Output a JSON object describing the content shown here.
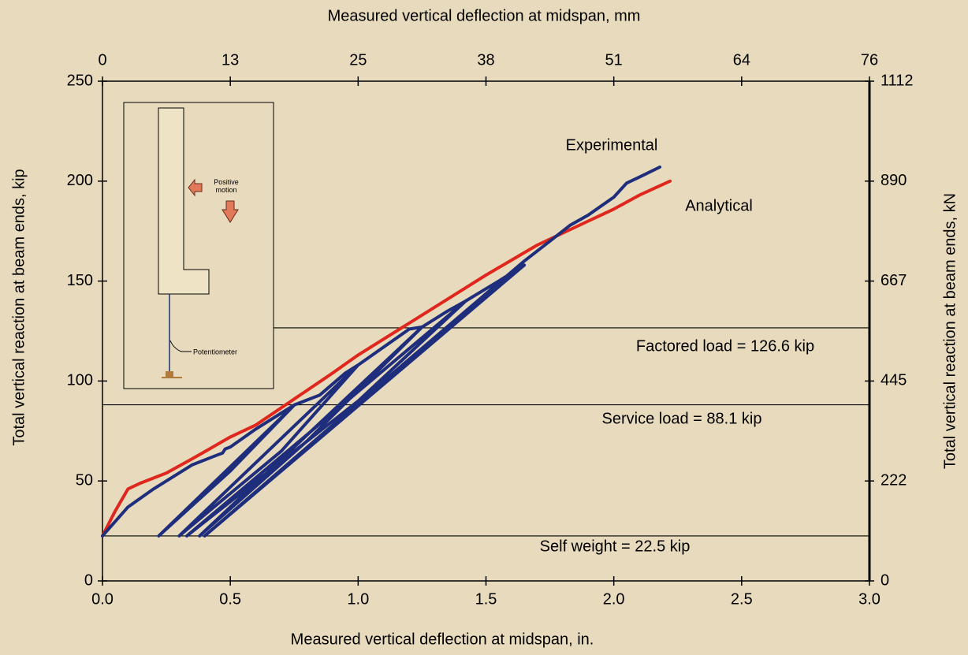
{
  "chart_data": {
    "type": "line",
    "x_label": "Measured vertical deflection at midspan, in.",
    "x2_label": "Measured vertical deflection at midspan, mm",
    "y_label": "Total vertical reaction at beam ends, kip",
    "y2_label": "Total vertical reaction at beam ends, kN",
    "xlim": [
      0,
      3
    ],
    "xticks": [
      {
        "value": 0,
        "label": "0.0"
      },
      0.5,
      {
        "value": 1,
        "label": "1.0"
      },
      1.5,
      {
        "value": 2,
        "label": "2.0"
      },
      2.5,
      {
        "value": 3,
        "label": "3.0"
      }
    ],
    "x2lim": [
      0,
      76.2
    ],
    "x2ticks": [
      0,
      {
        "value": 12.7,
        "label": "13"
      },
      {
        "value": 25.4,
        "label": "25"
      },
      {
        "value": 38.1,
        "label": "38"
      },
      {
        "value": 50.8,
        "label": "51"
      },
      {
        "value": 63.5,
        "label": "64"
      },
      {
        "value": 76.2,
        "label": "76"
      }
    ],
    "ylim": [
      0,
      250
    ],
    "yticks": [
      0,
      50,
      100,
      150,
      200,
      250
    ],
    "y2lim": [
      0,
      1112
    ],
    "y2ticks": [
      0,
      {
        "value": 222.4,
        "label": "222"
      },
      {
        "value": 444.8,
        "label": "445"
      },
      {
        "value": 667.2,
        "label": "667"
      },
      {
        "value": 889.6,
        "label": "890"
      },
      1112
    ],
    "series": [
      {
        "name": "Experimental",
        "color": "#1f2e7c",
        "x": [
          0,
          0.1,
          0.2,
          0.35,
          0.45,
          0.47,
          0.48,
          0.5,
          0.6,
          0.7,
          0.75,
          0.22,
          0.5,
          0.75,
          0.85,
          0.95,
          1.0,
          0.3,
          0.7,
          1.0,
          1.1,
          1.2,
          1.25,
          0.38,
          0.8,
          1.25,
          1.35,
          1.42,
          0.33,
          1.0,
          1.42,
          1.55,
          1.65,
          0.4,
          1.1,
          1.65,
          1.75,
          1.83,
          1.9,
          2.0,
          2.05,
          2.1,
          2.18
        ],
        "values": [
          22.5,
          37,
          46,
          58,
          63,
          64,
          66,
          67,
          76,
          84,
          88,
          22.5,
          55,
          88,
          93,
          104,
          108,
          22.5,
          65,
          108,
          117,
          126,
          127,
          22.5,
          70,
          127,
          135,
          140,
          22.5,
          90,
          140,
          150,
          158,
          22.5,
          100,
          160,
          170,
          178,
          183,
          192,
          199,
          202,
          207
        ]
      },
      {
        "name": "Analytical",
        "color": "#e0271d",
        "x": [
          0,
          0.05,
          0.1,
          0.15,
          0.25,
          0.35,
          0.5,
          0.6,
          0.75,
          0.9,
          1.0,
          1.2,
          1.4,
          1.5,
          1.7,
          1.9,
          2.0,
          2.1,
          2.22
        ],
        "values": [
          22.5,
          35,
          46,
          49,
          54,
          61,
          72,
          78,
          91,
          104,
          113,
          129,
          145,
          153,
          168,
          180,
          186,
          193,
          200
        ]
      }
    ],
    "reference_lines": [
      {
        "value": 126.6,
        "label": "Factored load = 126.6 kip"
      },
      {
        "value": 88.1,
        "label": "Service load = 88.1 kip"
      },
      {
        "value": 22.5,
        "label": "Self weight = 22.5 kip"
      }
    ],
    "inset_labels": [
      "Positive motion",
      "Potentiometer"
    ]
  }
}
